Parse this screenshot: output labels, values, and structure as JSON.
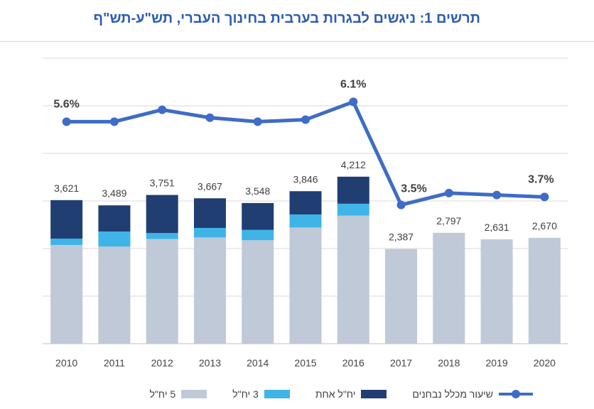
{
  "title": "תרשים 1: ניגשים לבגרות בערבית בחינוך העברי, תש\"ע-תש\"ף",
  "chart_data": {
    "type": "bar",
    "stacked": true,
    "categories": [
      "2010",
      "2011",
      "2012",
      "2013",
      "2014",
      "2015",
      "2016",
      "2017",
      "2018",
      "2019",
      "2020"
    ],
    "series": [
      {
        "name": "5 יח\"ל",
        "color": "#bfc9d8",
        "values": [
          2490,
          2450,
          2640,
          2680,
          2610,
          2930,
          3230,
          2387,
          2797,
          2631,
          2670
        ]
      },
      {
        "name": "3 יח\"ל",
        "color": "#3fb4e6",
        "values": [
          160,
          380,
          150,
          240,
          260,
          330,
          300,
          0,
          0,
          0,
          0
        ]
      },
      {
        "name": "יח\"ל אחת",
        "color": "#213e73",
        "values": [
          971,
          659,
          961,
          747,
          678,
          586,
          682,
          0,
          0,
          0,
          0
        ]
      }
    ],
    "bar_totals": [
      "3,621",
      "3,489",
      "3,751",
      "3,667",
      "3,548",
      "3,846",
      "4,212",
      "2,387",
      "2,797",
      "2,631",
      "2,670"
    ],
    "line_series": {
      "name": "שיעור מכלל נבחנים",
      "color": "#3e6cc6",
      "values": [
        5.6,
        5.6,
        5.9,
        5.7,
        5.6,
        5.65,
        6.1,
        3.5,
        3.8,
        3.75,
        3.7
      ],
      "labels": [
        "5.6%",
        "",
        "",
        "",
        "",
        "",
        "6.1%",
        "3.5%",
        "",
        "",
        "3.7%"
      ]
    },
    "ylim_bars": [
      0,
      7200
    ],
    "ylim_line": [
      0,
      7.2
    ],
    "grid": true,
    "legend_position": "bottom"
  }
}
